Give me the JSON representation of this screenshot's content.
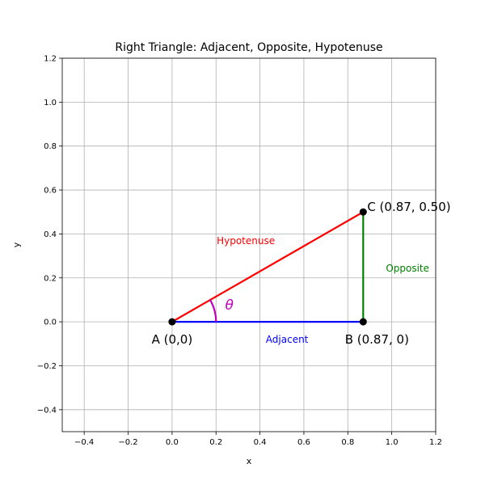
{
  "chart_data": {
    "type": "line",
    "title": "Right Triangle: Adjacent, Opposite, Hypotenuse",
    "xlabel": "x",
    "ylabel": "y",
    "xlim": [
      -0.5,
      1.2
    ],
    "ylim": [
      -0.5,
      1.2
    ],
    "xticks": [
      -0.4,
      -0.2,
      0.0,
      0.2,
      0.4,
      0.6,
      0.8,
      1.0,
      1.2
    ],
    "yticks": [
      -0.4,
      -0.2,
      0.0,
      0.2,
      0.4,
      0.6,
      0.8,
      1.0,
      1.2
    ],
    "grid": true,
    "points": [
      {
        "id": "A",
        "x": 0,
        "y": 0,
        "label": "A (0,0)"
      },
      {
        "id": "B",
        "x": 0.87,
        "y": 0,
        "label": "B (0.87, 0)"
      },
      {
        "id": "C",
        "x": 0.87,
        "y": 0.5,
        "label": "C (0.87, 0.50)"
      }
    ],
    "segments": [
      {
        "from": "A",
        "to": "B",
        "label": "Adjacent",
        "color": "#0000ff"
      },
      {
        "from": "B",
        "to": "C",
        "label": "Opposite",
        "color": "#008000"
      },
      {
        "from": "A",
        "to": "C",
        "label": "Hypotenuse",
        "color": "#ff0000"
      }
    ],
    "angle": {
      "vertex": "A",
      "radius": 0.2,
      "from_deg": 0,
      "to_deg": 30,
      "label": "θ",
      "color": "#bf00bf"
    }
  }
}
